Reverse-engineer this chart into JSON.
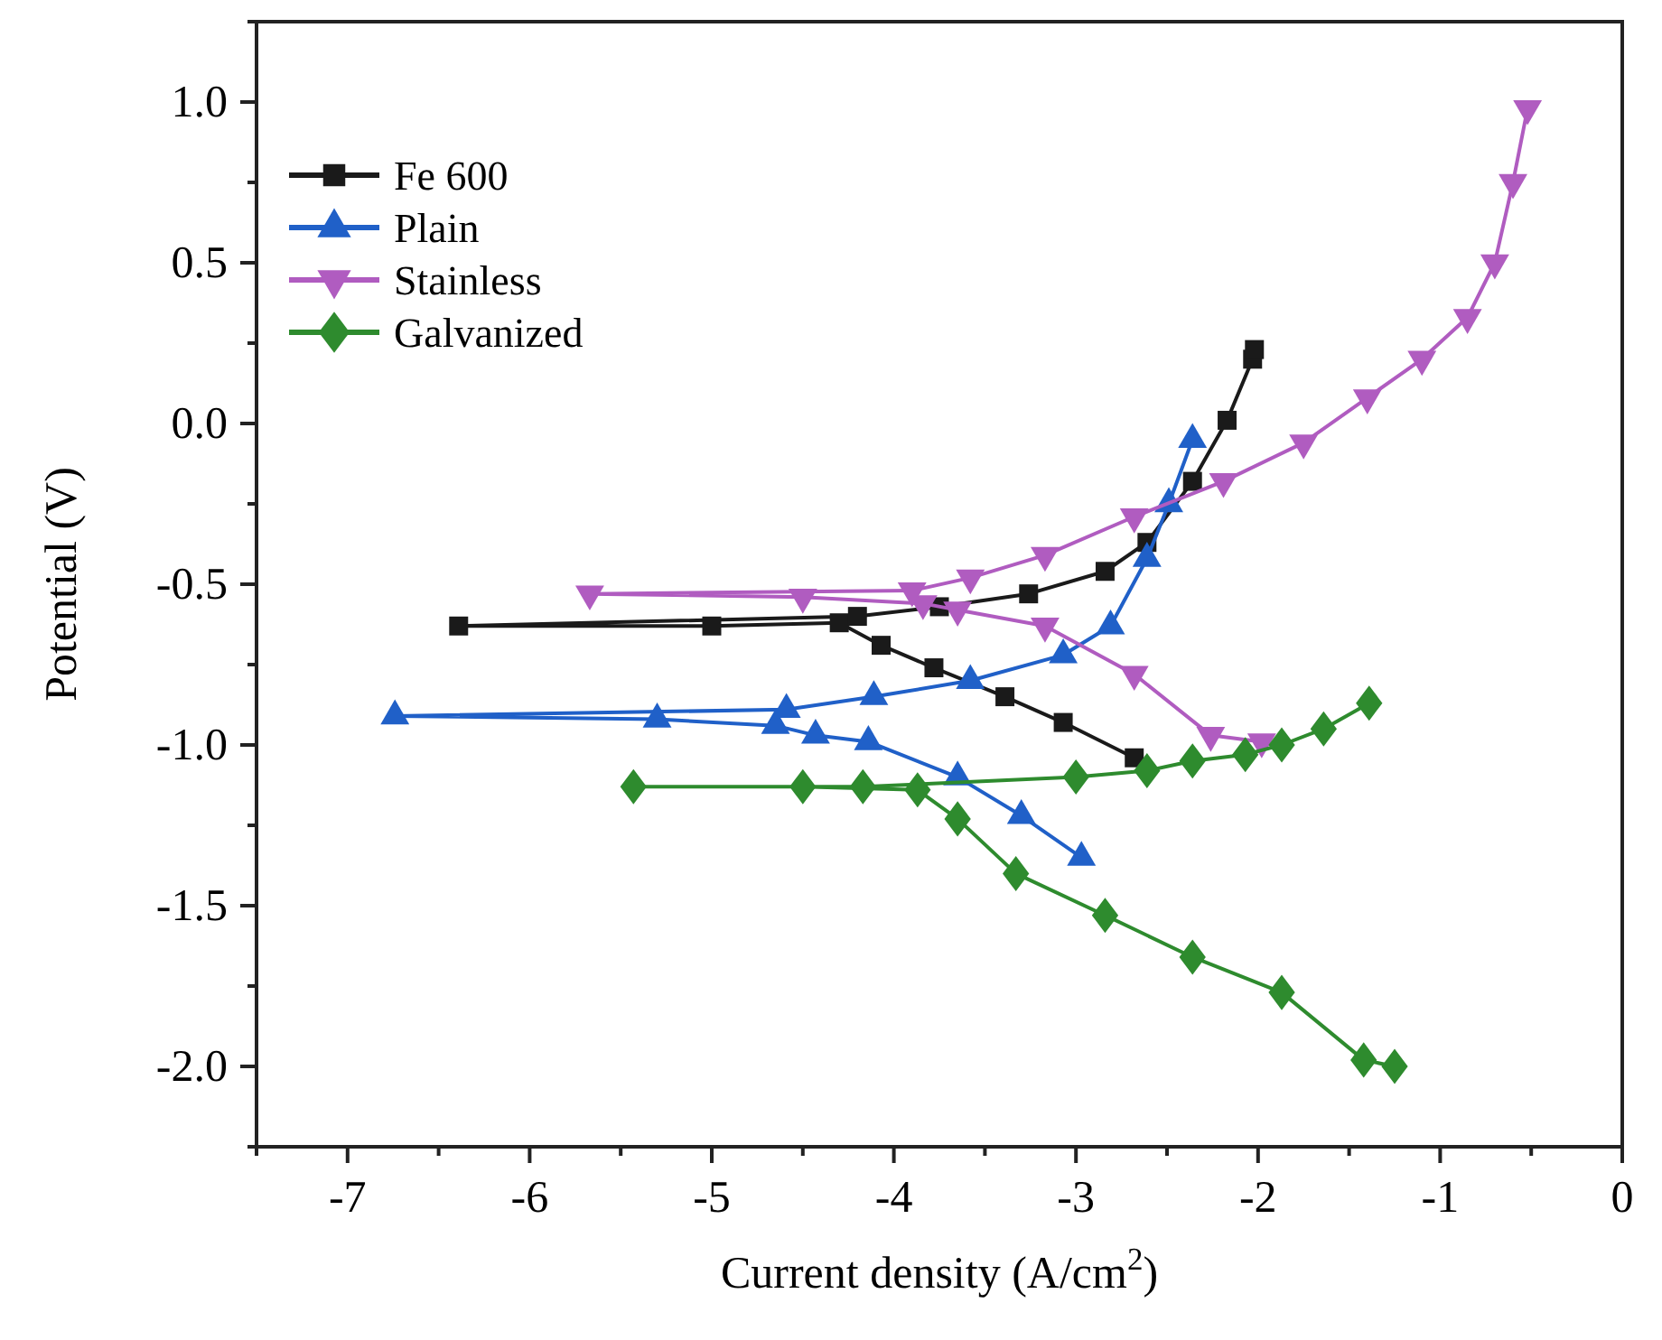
{
  "chart_data": {
    "type": "line",
    "xlabel": "Current density (A/cm$^{2}$)",
    "ylabel": "Potential (V)",
    "xlim": [
      -7.5,
      0
    ],
    "ylim": [
      -2.25,
      1.25
    ],
    "xticks": [
      {
        "value": -7.5,
        "label": null
      },
      -7,
      {
        "value": -6.5,
        "label": null
      },
      -6,
      {
        "value": -5.5,
        "label": null
      },
      -5,
      {
        "value": -4.5,
        "label": null
      },
      -4,
      {
        "value": -3.5,
        "label": null
      },
      -3,
      {
        "value": -2.5,
        "label": null
      },
      -2,
      {
        "value": -1.5,
        "label": null
      },
      -1,
      {
        "value": -0.5,
        "label": null
      },
      0
    ],
    "yticks": [
      {
        "value": -2.25,
        "label": null
      },
      {
        "value": -2,
        "label": "-2.0"
      },
      {
        "value": -1.75,
        "label": null
      },
      {
        "value": -1.5,
        "label": "-1.5"
      },
      {
        "value": -1.25,
        "label": null
      },
      {
        "value": -1,
        "label": "-1.0"
      },
      {
        "value": -0.75,
        "label": null
      },
      {
        "value": -0.5,
        "label": "-0.5"
      },
      {
        "value": -0.25,
        "label": null
      },
      {
        "value": 0,
        "label": "0.0"
      },
      {
        "value": 0.25,
        "label": null
      },
      {
        "value": 0.5,
        "label": "0.5"
      },
      {
        "value": 0.75,
        "label": null
      },
      {
        "value": 1,
        "label": "1.0"
      },
      {
        "value": 1.25,
        "label": null
      }
    ],
    "grid": false,
    "legend": "top left",
    "line_style": "solid",
    "series": [
      {
        "name": "Fe 600",
        "color": "#1a1a1a",
        "marker": "square",
        "x": [
          -2.68,
          -3.07,
          -3.39,
          -3.78,
          -4.07,
          -4.3,
          -5.0,
          -6.39,
          -4.2,
          -3.75,
          -3.26,
          -2.84,
          -2.61,
          -2.36,
          -2.17,
          -2.03,
          -2.02
        ],
        "values": [
          -1.04,
          -0.93,
          -0.85,
          -0.76,
          -0.69,
          -0.62,
          -0.63,
          -0.63,
          -0.6,
          -0.57,
          -0.53,
          -0.46,
          -0.37,
          -0.18,
          0.01,
          0.2,
          0.23
        ]
      },
      {
        "name": "Plain",
        "color": "#2060c8",
        "marker": "triangle",
        "x": [
          -2.97,
          -3.3,
          -3.65,
          -4.14,
          -4.43,
          -4.65,
          -5.3,
          -6.74,
          -4.59,
          -4.11,
          -3.58,
          -3.07,
          -2.81,
          -2.61,
          -2.49,
          -2.36
        ],
        "values": [
          -1.35,
          -1.22,
          -1.1,
          -0.99,
          -0.97,
          -0.94,
          -0.92,
          -0.91,
          -0.89,
          -0.85,
          -0.8,
          -0.72,
          -0.63,
          -0.42,
          -0.25,
          -0.05
        ]
      },
      {
        "name": "Stainless",
        "color": "#b05cc0",
        "marker": "triangle-down",
        "x": [
          -1.98,
          -2.26,
          -2.68,
          -3.17,
          -3.65,
          -3.84,
          -4.5,
          -5.67,
          -3.9,
          -3.58,
          -3.17,
          -2.68,
          -2.19,
          -1.75,
          -1.4,
          -1.1,
          -0.85,
          -0.7,
          -0.6,
          -0.52
        ],
        "values": [
          -0.99,
          -0.97,
          -0.78,
          -0.63,
          -0.58,
          -0.56,
          -0.54,
          -0.53,
          -0.52,
          -0.48,
          -0.41,
          -0.29,
          -0.18,
          -0.06,
          0.08,
          0.2,
          0.33,
          0.5,
          0.75,
          0.98
        ]
      },
      {
        "name": "Galvanized",
        "color": "#2e8b2e",
        "marker": "diamond",
        "x": [
          -1.25,
          -1.42,
          -1.87,
          -2.36,
          -2.84,
          -3.33,
          -3.65,
          -3.87,
          -4.5,
          -5.43,
          -4.17,
          -3.0,
          -2.61,
          -2.36,
          -2.07,
          -1.87,
          -1.64,
          -1.39
        ],
        "values": [
          -2.0,
          -1.98,
          -1.77,
          -1.66,
          -1.53,
          -1.4,
          -1.23,
          -1.14,
          -1.13,
          -1.13,
          -1.13,
          -1.1,
          -1.08,
          -1.05,
          -1.03,
          -1.0,
          -0.95,
          -0.87
        ]
      }
    ]
  }
}
